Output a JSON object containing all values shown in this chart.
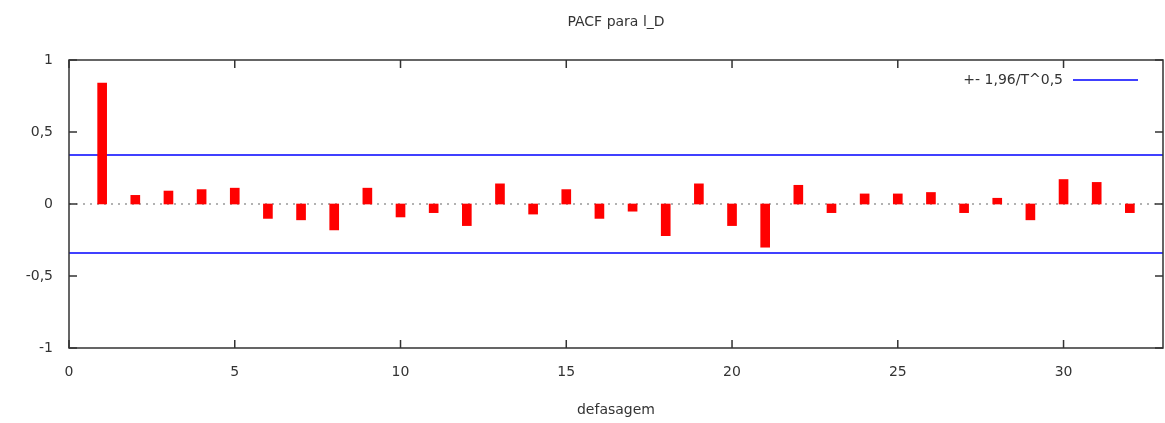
{
  "chart_data": {
    "type": "bar",
    "title": "PACF para l_D",
    "xlabel": "defasagem",
    "x": [
      1,
      2,
      3,
      4,
      5,
      6,
      7,
      8,
      9,
      10,
      11,
      12,
      13,
      14,
      15,
      16,
      17,
      18,
      19,
      20,
      21,
      22,
      23,
      24,
      25,
      26,
      27,
      28,
      29,
      30,
      31,
      32
    ],
    "values": [
      0.84,
      0.06,
      0.09,
      0.1,
      0.11,
      -0.1,
      -0.11,
      -0.18,
      0.11,
      -0.09,
      -0.06,
      -0.15,
      0.14,
      -0.07,
      0.1,
      -0.1,
      -0.05,
      -0.22,
      0.14,
      -0.15,
      -0.3,
      0.13,
      -0.06,
      0.07,
      0.07,
      0.08,
      -0.06,
      0.04,
      -0.11,
      0.17,
      0.15,
      -0.06
    ],
    "color": "#ff0000",
    "xlim": [
      0,
      33
    ],
    "xticks": [
      0,
      5,
      10,
      15,
      20,
      25,
      30
    ],
    "ylim": [
      -1,
      1
    ],
    "yticks": [
      {
        "value": -1,
        "label": "-1"
      },
      {
        "value": -0.5,
        "label": "-0,5"
      },
      0,
      {
        "value": 0.5,
        "label": "0,5"
      },
      1
    ],
    "ref_lines": [
      {
        "axis": "y",
        "value": 0.34,
        "label": "+- 1,96/T^0,5",
        "color": "#0000ff",
        "line_style": "solid"
      },
      {
        "axis": "y",
        "value": -0.34,
        "color": "#0000ff",
        "line_style": "solid"
      },
      {
        "axis": "y",
        "value": 0,
        "color": "#999999",
        "line_style": "dotted"
      }
    ],
    "legend": "top right"
  }
}
